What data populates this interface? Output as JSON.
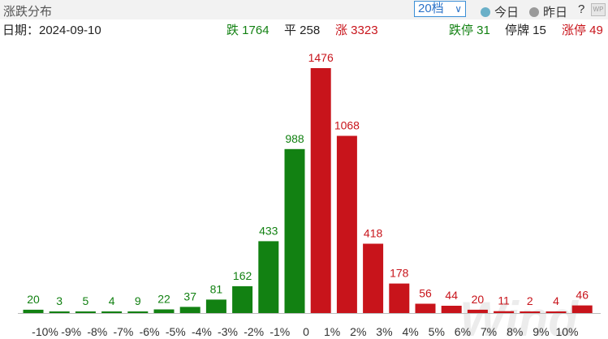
{
  "header": {
    "title": "涨跌分布",
    "level_select": "20档",
    "options": [
      {
        "label": "今日",
        "selected": true,
        "color": "#6ab0c8"
      },
      {
        "label": "昨日",
        "selected": false,
        "color": "#9a9a9a"
      }
    ],
    "help": "?"
  },
  "stats": {
    "date": "日期：2024-09-10",
    "down": "跌 1764",
    "flat": "平 258",
    "up": "涨 3323",
    "limit_down": "跌停 31",
    "suspended": "停牌 15",
    "limit_up": "涨停 49"
  },
  "watermark": "Wind",
  "chart_data": {
    "type": "bar",
    "categories": [
      "-10%",
      "-9%",
      "-8%",
      "-7%",
      "-6%",
      "-5%",
      "-4%",
      "-3%",
      "-2%",
      "-1%",
      "0",
      "1%",
      "2%",
      "3%",
      "4%",
      "5%",
      "6%",
      "7%",
      "8%",
      "9%",
      "10%"
    ],
    "bars": [
      {
        "label": "",
        "value": 20,
        "dir": "down"
      },
      {
        "label": "",
        "value": 3,
        "dir": "down"
      },
      {
        "label": "",
        "value": 5,
        "dir": "down"
      },
      {
        "label": "",
        "value": 4,
        "dir": "down"
      },
      {
        "label": "",
        "value": 9,
        "dir": "down"
      },
      {
        "label": "",
        "value": 22,
        "dir": "down"
      },
      {
        "label": "",
        "value": 37,
        "dir": "down"
      },
      {
        "label": "",
        "value": 81,
        "dir": "down"
      },
      {
        "label": "",
        "value": 162,
        "dir": "down"
      },
      {
        "label": "",
        "value": 433,
        "dir": "down"
      },
      {
        "label": "",
        "value": 988,
        "dir": "down"
      },
      {
        "label": "",
        "value": 1476,
        "dir": "up"
      },
      {
        "label": "",
        "value": 1068,
        "dir": "up"
      },
      {
        "label": "",
        "value": 418,
        "dir": "up"
      },
      {
        "label": "",
        "value": 178,
        "dir": "up"
      },
      {
        "label": "",
        "value": 56,
        "dir": "up"
      },
      {
        "label": "",
        "value": 44,
        "dir": "up"
      },
      {
        "label": "",
        "value": 20,
        "dir": "up"
      },
      {
        "label": "",
        "value": 11,
        "dir": "up"
      },
      {
        "label": "",
        "value": 2,
        "dir": "up"
      },
      {
        "label": "",
        "value": 4,
        "dir": "up"
      },
      {
        "label": "",
        "value": 46,
        "dir": "up"
      }
    ],
    "colors": {
      "down": "#128112",
      "up": "#c8141b",
      "axis": "#bbbbbb"
    },
    "ylim": [
      0,
      1476
    ]
  }
}
